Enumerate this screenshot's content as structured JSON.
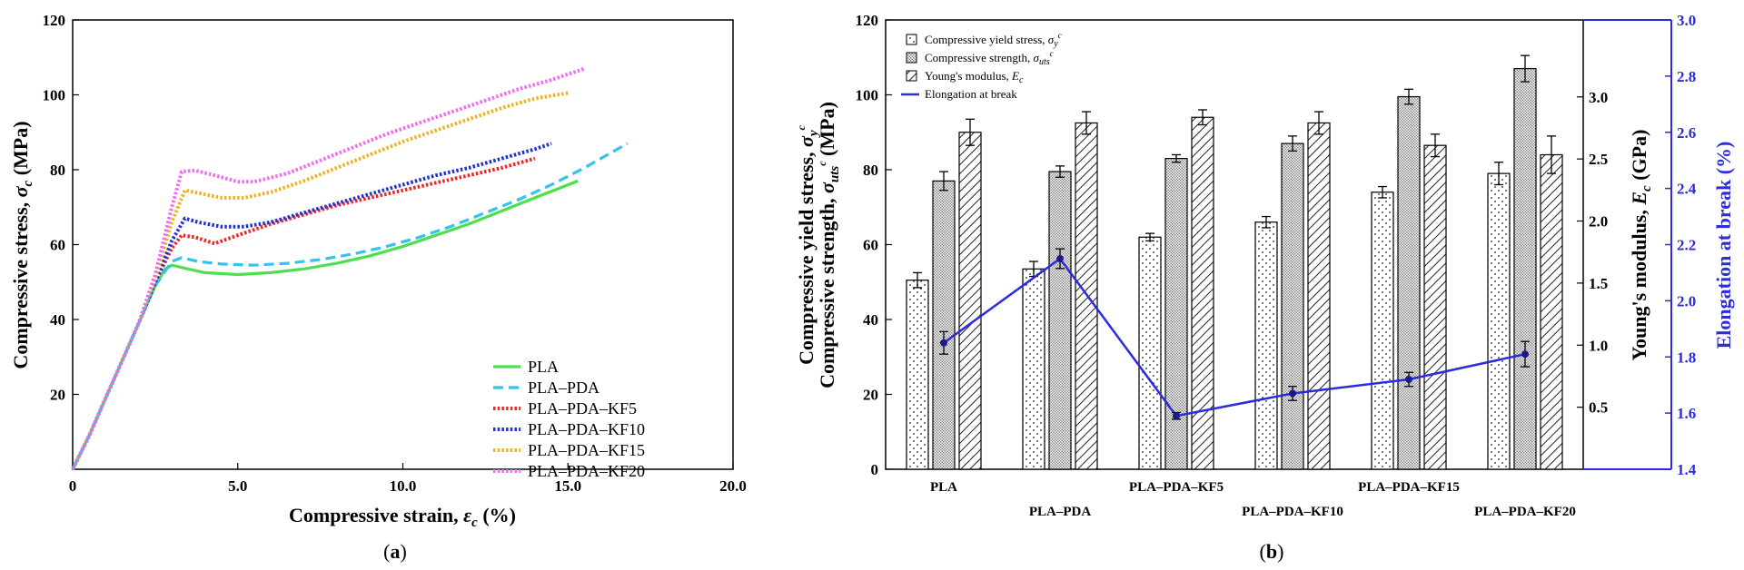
{
  "chart_data": [
    {
      "type": "line",
      "panel": "(a)",
      "panel_letter": "a",
      "xlabel": "Compressive strain, ε_c (%)",
      "xlabel_main": "Compressive strain, ",
      "xlabel_sym": "ε",
      "xlabel_sub": "c",
      "xlabel_unit": " (%)",
      "ylabel": "Compressive stress, σ_c (MPa)",
      "ylabel_main": "Compressive stress, ",
      "ylabel_sym": "σ",
      "ylabel_sub": "c",
      "ylabel_unit": " (MPa)",
      "xlim": [
        0,
        20
      ],
      "ylim": [
        0,
        120
      ],
      "x_ticks": [
        0,
        5,
        10,
        15,
        20
      ],
      "x_tick_labels": [
        "0",
        "5.0",
        "10.0",
        "15.0",
        "20.0"
      ],
      "y_ticks": [
        20,
        40,
        60,
        80,
        100,
        120
      ],
      "y_tick_labels": [
        "20",
        "40",
        "60",
        "80",
        "100",
        "120"
      ],
      "legend_position": "bottom-right",
      "series": [
        {
          "name": "PLA",
          "color": "#4ddf4d",
          "dash": "solid",
          "x": [
            0,
            0.5,
            1,
            1.5,
            2,
            2.5,
            2.8,
            3.0,
            3.5,
            4,
            5,
            6,
            7,
            8,
            9,
            10,
            11,
            12,
            13,
            14,
            15.3
          ],
          "y": [
            0,
            9,
            19,
            29,
            39,
            49,
            53.5,
            54.5,
            53.5,
            52.5,
            52,
            52.5,
            53.5,
            55,
            57,
            59.5,
            62.5,
            65.5,
            69,
            72.5,
            77
          ]
        },
        {
          "name": "PLA–PDA",
          "color": "#33c4ee",
          "dash": "dashed",
          "x": [
            0,
            0.5,
            1,
            1.5,
            2,
            2.5,
            3.0,
            3.3,
            3.8,
            4.5,
            5.5,
            6.5,
            7.5,
            8.5,
            9.5,
            10.5,
            11.5,
            12.5,
            13.5,
            14.5,
            15.5,
            16.8
          ],
          "y": [
            0,
            9,
            19,
            29,
            39,
            49,
            55.5,
            56.5,
            55.5,
            54.8,
            54.5,
            55,
            56,
            57.5,
            59.5,
            62,
            65,
            68.5,
            72,
            76,
            80.5,
            87
          ]
        },
        {
          "name": "PLA–PDA–KF5",
          "color": "#ee2424",
          "dash": "dotted",
          "x": [
            0,
            0.5,
            1,
            1.5,
            2,
            2.5,
            3.0,
            3.3,
            3.7,
            4.3,
            5,
            6,
            7,
            8,
            9,
            10,
            11,
            12,
            13,
            14
          ],
          "y": [
            0,
            9,
            19,
            29,
            39,
            50,
            59,
            62.5,
            62,
            60.3,
            62.5,
            65.5,
            68,
            70.5,
            72.5,
            74.5,
            76.5,
            78.5,
            80.5,
            83
          ]
        },
        {
          "name": "PLA–PDA–KF10",
          "color": "#1e30d0",
          "dash": "dotted",
          "x": [
            0,
            0.5,
            1,
            1.5,
            2,
            2.5,
            3.0,
            3.4,
            3.8,
            4.5,
            5.2,
            6,
            7,
            8,
            9,
            10,
            11,
            12,
            13,
            14,
            14.5
          ],
          "y": [
            0,
            9,
            19,
            29,
            39,
            50,
            61,
            67,
            66,
            64.8,
            64.8,
            66,
            68.5,
            71,
            73.5,
            76,
            78.5,
            80.5,
            83,
            85.5,
            87
          ]
        },
        {
          "name": "PLA–PDA–KF15",
          "color": "#ecb324",
          "dash": "dotted",
          "x": [
            0,
            0.5,
            1,
            1.5,
            2,
            2.5,
            3.0,
            3.4,
            3.8,
            4.5,
            5.2,
            6,
            7,
            8,
            9,
            10,
            11,
            12,
            13,
            14,
            15
          ],
          "y": [
            0,
            9,
            19,
            29,
            39,
            51,
            66,
            74.5,
            73.8,
            72.5,
            72.5,
            74,
            77,
            80.5,
            84,
            87.5,
            90.5,
            93.5,
            96.5,
            99,
            100.5
          ]
        },
        {
          "name": "PLA–PDA–KF20",
          "color": "#ee6cee",
          "dash": "dotted",
          "x": [
            0,
            0.5,
            1,
            1.5,
            2,
            2.5,
            3.0,
            3.3,
            3.7,
            4.3,
            5,
            5.5,
            6.5,
            7.5,
            8.5,
            9.5,
            10.5,
            11.5,
            12.5,
            13.5,
            14.5,
            15.5
          ],
          "y": [
            0,
            9,
            19,
            29,
            39,
            52,
            70,
            79.5,
            79.8,
            78.5,
            76.8,
            76.8,
            79,
            82.5,
            86,
            89.5,
            92.5,
            95.5,
            98.5,
            101.5,
            104,
            107
          ]
        }
      ]
    },
    {
      "type": "bar",
      "panel": "(b)",
      "panel_letter": "b",
      "categories": [
        "PLA",
        "PLA–PDA",
        "PLA–PDA–KF5",
        "PLA–PDA–KF10",
        "PLA–PDA–KF15",
        "PLA–PDA–KF20"
      ],
      "ylabel_left_line1": "Compressive yield stress, σ_y^c",
      "ylabel_left_line1_main": "Compressive yield stress, ",
      "ylabel_left_line1_sym": "σ",
      "ylabel_left_line1_sub": "y",
      "ylabel_left_line1_sup": "c",
      "ylabel_left_line2": "Compressive strength, σ_uts^c (MPa)",
      "ylabel_left_line2_main": "Compressive strength, ",
      "ylabel_left_line2_sym": "σ",
      "ylabel_left_line2_sub": "uts",
      "ylabel_left_line2_sup": "c",
      "ylabel_left_line2_unit": " (MPa)",
      "ylim_left": [
        0,
        120
      ],
      "y_ticks_left": [
        0,
        20,
        40,
        60,
        80,
        100,
        120
      ],
      "ylabel_right1": "Young's modulus, E_c (GPa)",
      "ylabel_right1_main": "Young's modulus, ",
      "ylabel_right1_sym": "E",
      "ylabel_right1_sub": "c",
      "ylabel_right1_unit": " (GPa)",
      "y_ticks_right1": [
        0.5,
        1.0,
        1.5,
        2.0,
        2.5,
        3.0
      ],
      "y_tick_labels_right1": [
        "0.5",
        "1.0",
        "1.5",
        "2.0",
        "2.5",
        "3.0"
      ],
      "ylim_right1": [
        0,
        3.62
      ],
      "ylabel_right2": "Elongation at break (%)",
      "ylim_right2": [
        1.4,
        3.0
      ],
      "y_ticks_right2": [
        1.4,
        1.6,
        1.8,
        2.0,
        2.2,
        2.4,
        2.6,
        2.8,
        3.0
      ],
      "y_tick_labels_right2": [
        "1.4",
        "1.6",
        "1.8",
        "2.0",
        "2.2",
        "2.4",
        "2.6",
        "2.8",
        "3.0"
      ],
      "right2_color": "#2b2be0",
      "legend_position": "top-left",
      "series": [
        {
          "name": "Compressive yield stress, σ_y^c",
          "legend_main": "Compressive yield stress, ",
          "legend_sym": "σ",
          "legend_sub": "y",
          "legend_sup": "c",
          "pattern": "dots",
          "axis": "left",
          "values": [
            50.5,
            53.5,
            62,
            66,
            74,
            79
          ],
          "errors": [
            2,
            2,
            1,
            1.5,
            1.5,
            3
          ]
        },
        {
          "name": "Compressive strength, σ_uts^c",
          "legend_main": "Compressive strength, ",
          "legend_sym": "σ",
          "legend_sub": "uts",
          "legend_sup": "c",
          "pattern": "crosshatch",
          "axis": "left",
          "values": [
            77,
            79.5,
            83,
            87,
            99.5,
            107
          ],
          "errors": [
            2.5,
            1.5,
            1,
            2,
            2,
            3.5
          ]
        },
        {
          "name": "Young's modulus, E_c",
          "legend_main": "Young's modulus, ",
          "legend_sym": "E",
          "legend_sub": "c",
          "legend_sup": "",
          "pattern": "diagonal",
          "axis": "left",
          "values": [
            90,
            92.5,
            94,
            92.5,
            86.5,
            84
          ],
          "errors": [
            3.5,
            3,
            2,
            3,
            3,
            5
          ]
        },
        {
          "name": "Elongation at break",
          "legend_main": "Elongation at break",
          "legend_sym": "",
          "legend_sub": "",
          "legend_sup": "",
          "type": "line",
          "axis": "right2",
          "color": "#2b2be0",
          "values": [
            1.85,
            2.15,
            1.59,
            1.67,
            1.72,
            1.81
          ],
          "errors": [
            0.04,
            0.035,
            0.012,
            0.025,
            0.025,
            0.045
          ]
        }
      ]
    }
  ]
}
